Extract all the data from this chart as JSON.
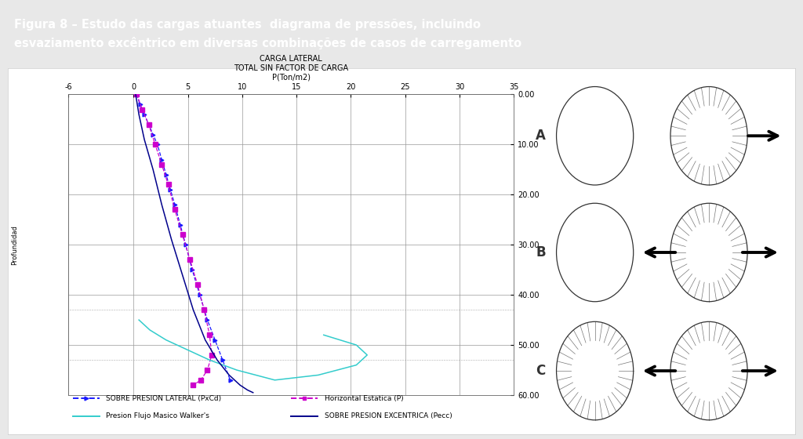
{
  "title_text": "Figura 8 – Estudo das cargas atuantes  diagrama de pressões, incluindo\nesvaziamento excêntrico em diversas combinações de casos de carregamento",
  "title_bg": "#F07820",
  "title_fg": "#FFFFFF",
  "outer_bg": "#E8E8E8",
  "inner_bg": "#FFFFFF",
  "chart_title_line1": "CARGA LATERAL",
  "chart_title_line2": "TOTAL SIN FACTOR DE CARGA",
  "chart_title_line3": "P(Ton/m2)",
  "xlim": [
    -6,
    35
  ],
  "ylim": [
    60,
    0
  ],
  "yticks": [
    0,
    10,
    20,
    30,
    40,
    50,
    60
  ],
  "xticks": [
    -6,
    0,
    5,
    10,
    15,
    20,
    25,
    30,
    35
  ],
  "ylabel": "Profundidad",
  "grid_color": "#999999",
  "series": [
    {
      "name": "SOBRE PRESION LATERAL (PxCd)",
      "color": "#1A1AFF",
      "style": "--",
      "marker": ">",
      "markersize": 3.5,
      "x": [
        0.3,
        0.6,
        1.0,
        1.4,
        1.8,
        2.2,
        2.6,
        3.0,
        3.4,
        3.8,
        4.3,
        4.8,
        5.4,
        6.1,
        6.8,
        7.5,
        8.2,
        8.9
      ],
      "y": [
        0,
        2,
        4,
        6,
        8,
        10,
        13,
        16,
        19,
        22,
        26,
        30,
        35,
        40,
        45,
        49,
        53,
        57
      ]
    },
    {
      "name": "Horizontal Estatica (P)",
      "color": "#CC00CC",
      "style": "--",
      "marker": "s",
      "markersize": 4,
      "x": [
        0.3,
        0.8,
        1.4,
        2.0,
        2.6,
        3.2,
        3.8,
        4.5,
        5.2,
        5.9,
        6.5,
        7.0,
        7.2,
        6.8,
        6.2,
        5.5
      ],
      "y": [
        0,
        3,
        6,
        10,
        14,
        18,
        23,
        28,
        33,
        38,
        43,
        48,
        52,
        55,
        57,
        58
      ]
    },
    {
      "name": "Presion Flujo Masico Walker's",
      "color": "#33CCCC",
      "style": "-",
      "x": [
        0.5,
        1.5,
        3.0,
        5.0,
        7.0,
        9.5,
        13.0,
        17.0,
        20.5,
        21.5,
        20.5,
        17.5
      ],
      "y": [
        45,
        47,
        49,
        51,
        53,
        55,
        57,
        56,
        54,
        52,
        50,
        48
      ]
    },
    {
      "name": "SOBRE PRESION EXCENTRICA (Pecc)",
      "color": "#00008B",
      "style": "-",
      "x": [
        0.2,
        0.5,
        1.0,
        1.8,
        2.6,
        3.5,
        4.5,
        5.5,
        6.6,
        7.7,
        8.8,
        9.8,
        10.5,
        11.0
      ],
      "y": [
        0,
        4,
        9,
        15,
        22,
        29,
        36,
        43,
        49,
        53,
        56,
        58,
        59,
        59.5
      ]
    }
  ],
  "legend_items": [
    {
      "name": "SOBRE PRESION LATERAL (PxCd)",
      "color": "#1A1AFF",
      "style": "--",
      "marker": ">"
    },
    {
      "name": "Horizontal Estatica (P)",
      "color": "#CC00CC",
      "style": "--",
      "marker": "s"
    },
    {
      "name": "Presion Flujo Masico Walker's",
      "color": "#33CCCC",
      "style": "-",
      "marker": ""
    },
    {
      "name": "SOBRE PRESION EXCENTRICA (Pecc)",
      "color": "#00008B",
      "style": "-",
      "marker": ""
    }
  ],
  "circles": [
    {
      "label": "A",
      "left_rays": false,
      "right_rays": true,
      "arrow_dir": "right_only"
    },
    {
      "label": "B",
      "left_rays": false,
      "right_rays": true,
      "arrow_dir": "both"
    },
    {
      "label": "C",
      "left_rays": true,
      "right_rays": true,
      "arrow_dir": "both"
    }
  ]
}
